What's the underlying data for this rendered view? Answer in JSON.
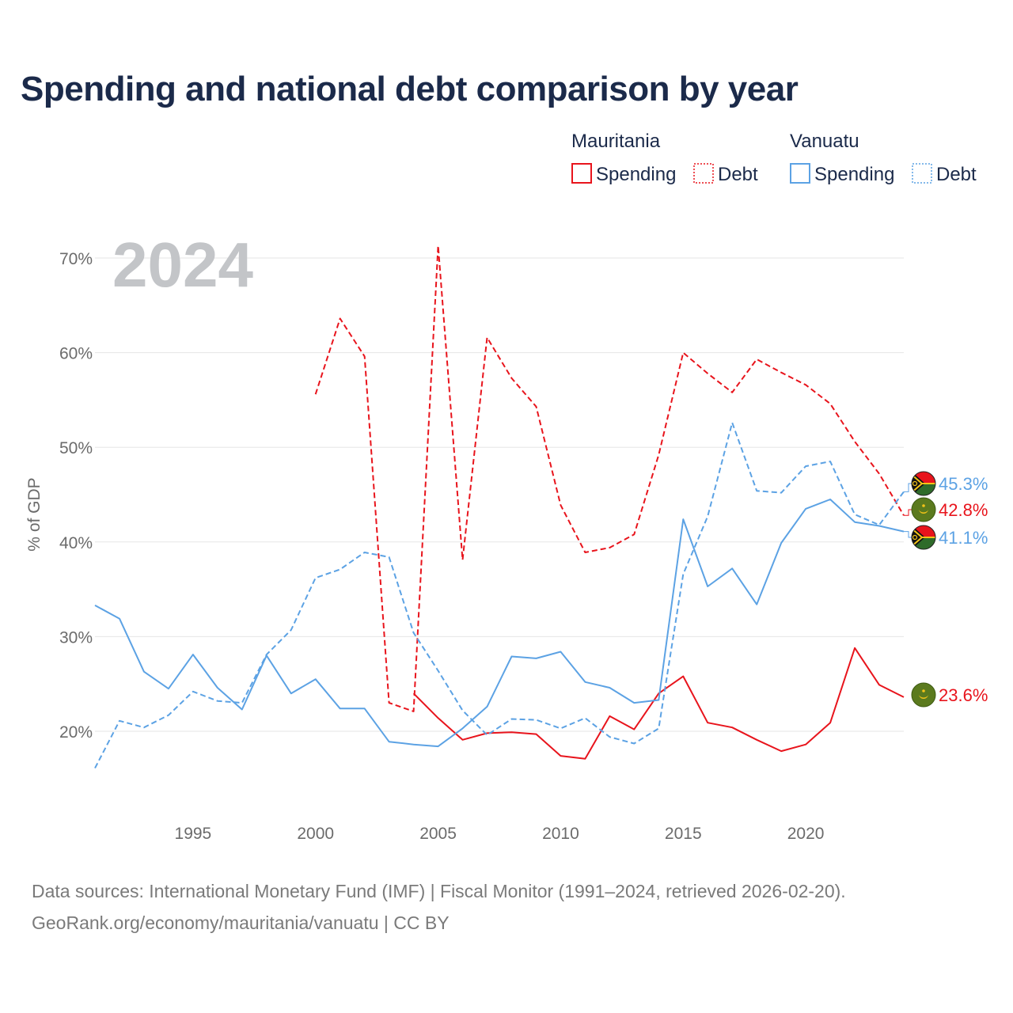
{
  "title": "Spending and national debt comparison by year",
  "year_watermark": "2024",
  "legend": {
    "groups": [
      {
        "name": "Mauritania",
        "color": "#e8141c",
        "items": [
          {
            "label": "Spending",
            "style": "solid"
          },
          {
            "label": "Debt",
            "style": "dotted"
          }
        ]
      },
      {
        "name": "Vanuatu",
        "color": "#5ca2e4",
        "items": [
          {
            "label": "Spending",
            "style": "solid"
          },
          {
            "label": "Debt",
            "style": "dotted"
          }
        ]
      }
    ]
  },
  "footer": {
    "line1": "Data sources: International Monetary Fund (IMF) | Fiscal Monitor (1991–2024, retrieved 2026-02-20).",
    "line2": "GeoRank.org/economy/mauritania/vanuatu | CC BY"
  },
  "chart_data": {
    "type": "line",
    "title": "Spending and national debt comparison by year",
    "xlabel": "",
    "ylabel": "% of GDP",
    "xlim": [
      1991,
      2024
    ],
    "ylim": [
      14.5,
      72
    ],
    "x_ticks": [
      1995,
      2000,
      2005,
      2010,
      2015,
      2020
    ],
    "y_ticks": [
      20,
      30,
      40,
      50,
      60,
      70
    ],
    "y_tick_labels": [
      "20%",
      "30%",
      "40%",
      "50%",
      "60%",
      "70%"
    ],
    "grid": true,
    "series": [
      {
        "name": "Mauritania Debt",
        "country": "Mauritania",
        "metric": "Debt",
        "color": "#e8141c",
        "dash": "dashed",
        "points": [
          [
            2000,
            55.6
          ],
          [
            2001,
            63.6
          ],
          [
            2002,
            59.6
          ],
          [
            2003,
            23.0
          ],
          [
            2004,
            22.1
          ],
          [
            2005,
            71.3
          ],
          [
            2006,
            38.1
          ],
          [
            2007,
            61.6
          ],
          [
            2008,
            57.3
          ],
          [
            2009,
            54.3
          ],
          [
            2010,
            43.9
          ],
          [
            2011,
            38.9
          ],
          [
            2012,
            39.4
          ],
          [
            2013,
            40.8
          ],
          [
            2014,
            49.2
          ],
          [
            2015,
            60.0
          ],
          [
            2016,
            57.8
          ],
          [
            2017,
            55.8
          ],
          [
            2018,
            59.3
          ],
          [
            2019,
            57.9
          ],
          [
            2020,
            56.6
          ],
          [
            2021,
            54.6
          ],
          [
            2022,
            50.6
          ],
          [
            2023,
            47.2
          ],
          [
            2024,
            42.8
          ]
        ],
        "end_label": "42.8%"
      },
      {
        "name": "Mauritania Spending",
        "country": "Mauritania",
        "metric": "Spending",
        "color": "#e8141c",
        "dash": "solid",
        "points": [
          [
            2004,
            24.0
          ],
          [
            2005,
            21.4
          ],
          [
            2006,
            19.1
          ],
          [
            2007,
            19.8
          ],
          [
            2008,
            19.9
          ],
          [
            2009,
            19.7
          ],
          [
            2010,
            17.4
          ],
          [
            2011,
            17.1
          ],
          [
            2012,
            21.6
          ],
          [
            2013,
            20.2
          ],
          [
            2014,
            24.0
          ],
          [
            2015,
            25.8
          ],
          [
            2016,
            20.9
          ],
          [
            2017,
            20.4
          ],
          [
            2018,
            19.1
          ],
          [
            2019,
            17.9
          ],
          [
            2020,
            18.6
          ],
          [
            2021,
            20.9
          ],
          [
            2022,
            28.8
          ],
          [
            2023,
            24.9
          ],
          [
            2024,
            23.6
          ]
        ],
        "end_label": "23.6%"
      },
      {
        "name": "Vanuatu Debt",
        "country": "Vanuatu",
        "metric": "Debt",
        "color": "#5ca2e4",
        "dash": "dashed",
        "points": [
          [
            1991,
            16.1
          ],
          [
            1992,
            21.1
          ],
          [
            1993,
            20.4
          ],
          [
            1994,
            21.7
          ],
          [
            1995,
            24.2
          ],
          [
            1996,
            23.2
          ],
          [
            1997,
            23.0
          ],
          [
            1998,
            28.1
          ],
          [
            1999,
            30.7
          ],
          [
            2000,
            36.2
          ],
          [
            2001,
            37.1
          ],
          [
            2002,
            38.9
          ],
          [
            2003,
            38.4
          ],
          [
            2004,
            30.4
          ],
          [
            2005,
            26.4
          ],
          [
            2006,
            22.2
          ],
          [
            2007,
            19.6
          ],
          [
            2008,
            21.3
          ],
          [
            2009,
            21.2
          ],
          [
            2010,
            20.3
          ],
          [
            2011,
            21.4
          ],
          [
            2012,
            19.4
          ],
          [
            2013,
            18.7
          ],
          [
            2014,
            20.3
          ],
          [
            2015,
            36.6
          ],
          [
            2016,
            42.7
          ],
          [
            2017,
            52.6
          ],
          [
            2018,
            45.4
          ],
          [
            2019,
            45.2
          ],
          [
            2020,
            48.0
          ],
          [
            2021,
            48.5
          ],
          [
            2022,
            42.9
          ],
          [
            2023,
            41.8
          ],
          [
            2024,
            45.3
          ]
        ],
        "end_label": "45.3%"
      },
      {
        "name": "Vanuatu Spending",
        "country": "Vanuatu",
        "metric": "Spending",
        "color": "#5ca2e4",
        "dash": "solid",
        "points": [
          [
            1991,
            33.3
          ],
          [
            1992,
            31.9
          ],
          [
            1993,
            26.3
          ],
          [
            1994,
            24.5
          ],
          [
            1995,
            28.1
          ],
          [
            1996,
            24.6
          ],
          [
            1997,
            22.3
          ],
          [
            1998,
            28.0
          ],
          [
            1999,
            24.0
          ],
          [
            2000,
            25.5
          ],
          [
            2001,
            22.4
          ],
          [
            2002,
            22.4
          ],
          [
            2003,
            18.9
          ],
          [
            2004,
            18.6
          ],
          [
            2005,
            18.4
          ],
          [
            2006,
            20.3
          ],
          [
            2007,
            22.6
          ],
          [
            2008,
            27.9
          ],
          [
            2009,
            27.7
          ],
          [
            2010,
            28.4
          ],
          [
            2011,
            25.2
          ],
          [
            2012,
            24.6
          ],
          [
            2013,
            23.0
          ],
          [
            2014,
            23.3
          ],
          [
            2015,
            42.4
          ],
          [
            2016,
            35.3
          ],
          [
            2017,
            37.2
          ],
          [
            2018,
            33.4
          ],
          [
            2019,
            39.9
          ],
          [
            2020,
            43.5
          ],
          [
            2021,
            44.5
          ],
          [
            2022,
            42.1
          ],
          [
            2023,
            41.7
          ],
          [
            2024,
            41.1
          ]
        ],
        "end_label": "41.1%"
      }
    ]
  }
}
